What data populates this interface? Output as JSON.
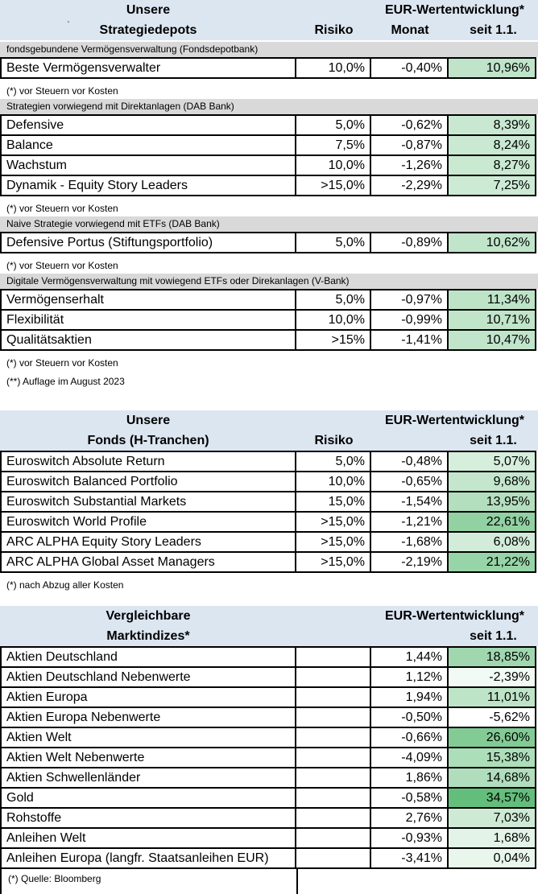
{
  "page": {
    "background": "#ffffff",
    "border_color": "#000000",
    "header_bg": "#dce6f1",
    "band_bg": "#d9d9d9",
    "value_color_scale": {
      "min_value": -5.62,
      "max_value": 34.57,
      "min_color": "#ffffff",
      "max_color": "#63be7b"
    }
  },
  "tables": [
    {
      "id": "strategiedepots",
      "header": {
        "line1": "Unsere",
        "line2": "Strategiedepots",
        "eur": "EUR-Wertentwicklung*",
        "risiko": "Risiko",
        "monat": "Monat",
        "seit": "seit 1.1.",
        "stray_mark": "'"
      },
      "sections": [
        {
          "band": "fondsgebundene Vermögensverwaltung (Fondsdepotbank)",
          "rows": [
            {
              "name": "Beste Vermögensverwalter",
              "risiko": "10,0%",
              "monat": "-0,40%",
              "seit": "10,96%",
              "seit_color": "#bfe4c9"
            }
          ],
          "footnotes": [
            "(*) vor Steuern vor Kosten"
          ]
        },
        {
          "band": "Strategien vorwiegend mit Direktanlagen (DAB Bank)",
          "rows": [
            {
              "name": "Defensive",
              "risiko": "5,0%",
              "monat": "-0,62%",
              "seit": "8,39%",
              "seit_color": "#c9e8d1"
            },
            {
              "name": "Balance",
              "risiko": "7,5%",
              "monat": "-0,87%",
              "seit": "8,24%",
              "seit_color": "#c9e9d2"
            },
            {
              "name": "Wachstum",
              "risiko": "10,0%",
              "monat": "-1,26%",
              "seit": "8,27%",
              "seit_color": "#c9e9d1"
            },
            {
              "name": "Dynamik - Equity Story Leaders",
              "risiko": ">15,0%",
              "monat": "-2,29%",
              "seit": "7,25%",
              "seit_color": "#cdead5"
            }
          ],
          "footnotes": [
            "(*) vor Steuern vor Kosten"
          ]
        },
        {
          "band": "Naive Strategie vorwiegend mit ETFs (DAB Bank)",
          "rows": [
            {
              "name": "Defensive Portus (Stiftungsportfolio)",
              "risiko": "5,0%",
              "monat": "-0,89%",
              "seit": "10,62%",
              "seit_color": "#c0e5ca"
            }
          ],
          "footnotes": [
            "(*) vor Steuern vor Kosten"
          ]
        },
        {
          "band": "Digitale Vermögensverwaltung mit vowiegend ETFs oder Direkanlagen (V-Bank)",
          "rows": [
            {
              "name": "Vermögenserhalt",
              "risiko": "5,0%",
              "monat": "-0,97%",
              "seit": "11,34%",
              "seit_color": "#bde4c7"
            },
            {
              "name": "Flexibilität",
              "risiko": "10,0%",
              "monat": "-0,99%",
              "seit": "10,71%",
              "seit_color": "#c0e5c9"
            },
            {
              "name": "Qualitätsaktien",
              "risiko": ">15%",
              "monat": "-1,41%",
              "seit": "10,47%",
              "seit_color": "#c1e5ca"
            }
          ],
          "footnotes": [
            "(*) vor Steuern vor Kosten",
            "(**) Auflage im August 2023"
          ]
        }
      ]
    },
    {
      "id": "fonds",
      "header": {
        "line1": "Unsere",
        "line2": "Fonds (H-Tranchen)",
        "eur": "EUR-Wertentwicklung*",
        "risiko": "Risiko",
        "monat": "",
        "seit": "seit 1.1."
      },
      "sections": [
        {
          "rows": [
            {
              "name": "Euroswitch Absolute Return",
              "risiko": "5,0%",
              "monat": "-0,48%",
              "seit": "5,07%",
              "seit_color": "#d6eedc"
            },
            {
              "name": "Euroswitch Balanced Portfolio",
              "risiko": "10,0%",
              "monat": "-0,65%",
              "seit": "9,68%",
              "seit_color": "#c4e6cd"
            },
            {
              "name": "Euroswitch Substantial Markets",
              "risiko": "15,0%",
              "monat": "-1,54%",
              "seit": "13,95%",
              "seit_color": "#b3dfbf"
            },
            {
              "name": "Euroswitch World Profile",
              "risiko": ">15,0%",
              "monat": "-1,21%",
              "seit": "22,61%",
              "seit_color": "#91d1a2"
            },
            {
              "name": "ARC ALPHA Equity Story Leaders",
              "risiko": ">15,0%",
              "monat": "-1,68%",
              "seit": "6,08%",
              "seit_color": "#d2ecd9"
            },
            {
              "name": "ARC ALPHA Global Asset Managers",
              "risiko": ">15,0%",
              "monat": "-2,19%",
              "seit": "21,22%",
              "seit_color": "#97d4a7"
            }
          ],
          "footnotes": [
            "(*) nach Abzug aller Kosten"
          ]
        }
      ]
    },
    {
      "id": "marktindizes",
      "header": {
        "line1": "Vergleichbare",
        "line2": "Marktindizes*",
        "eur": "EUR-Wertentwicklung*",
        "risiko": "",
        "monat": "",
        "seit": "seit 1.1."
      },
      "sections": [
        {
          "rows": [
            {
              "name": "Aktien Deutschland",
              "risiko": "",
              "monat": "1,44%",
              "seit": "18,85%",
              "seit_color": "#a0d7af"
            },
            {
              "name": "Aktien Deutschland Nebenwerte",
              "risiko": "",
              "monat": "1,12%",
              "seit": "-2,39%",
              "seit_color": "#f2faf4"
            },
            {
              "name": "Aktien Europa",
              "risiko": "",
              "monat": "1,94%",
              "seit": "11,01%",
              "seit_color": "#bee4c8"
            },
            {
              "name": "Aktien Europa Nebenwerte",
              "risiko": "",
              "monat": "-0,50%",
              "seit": "-5,62%",
              "seit_color": "#ffffff"
            },
            {
              "name": "Aktien Welt",
              "risiko": "",
              "monat": "-0,66%",
              "seit": "26,60%",
              "seit_color": "#82cb95"
            },
            {
              "name": "Aktien Welt Nebenwerte",
              "risiko": "",
              "monat": "-4,09%",
              "seit": "15,38%",
              "seit_color": "#addeba"
            },
            {
              "name": "Aktien Schwellenländer",
              "risiko": "",
              "monat": "1,86%",
              "seit": "14,68%",
              "seit_color": "#b0debc"
            },
            {
              "name": "Gold",
              "risiko": "",
              "monat": "-0,58%",
              "seit": "34,57%",
              "seit_color": "#63be7b"
            },
            {
              "name": "Rohstoffe",
              "risiko": "",
              "monat": "2,76%",
              "seit": "7,03%",
              "seit_color": "#ceead5"
            },
            {
              "name": "Anleihen Welt",
              "risiko": "",
              "monat": "-0,93%",
              "seit": "1,68%",
              "seit_color": "#e3f3e7"
            },
            {
              "name": "Anleihen Europa (langfr. Staatsanleihen EUR)",
              "risiko": "",
              "monat": "-3,41%",
              "seit": "0,04%",
              "seit_color": "#e9f6ec"
            }
          ],
          "footnotes": []
        }
      ],
      "bottom_note": "(*) Quelle: Bloomberg"
    }
  ]
}
